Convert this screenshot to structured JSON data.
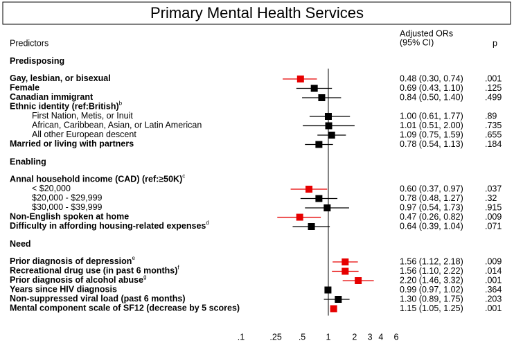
{
  "chart_data": {
    "type": "forest",
    "title": "Primary Mental Health Services",
    "header": {
      "predictors": "Predictors",
      "estimate": [
        "Adjusted ORs",
        "(95% CI)"
      ],
      "p": "p"
    },
    "xscale": "log",
    "xlim": [
      0.1,
      6
    ],
    "xticks": [
      {
        "value": 0.1,
        "label": ".1"
      },
      {
        "value": 0.25,
        "label": ".25"
      },
      {
        "value": 0.5,
        "label": ".5"
      },
      1,
      2,
      3,
      4,
      6
    ],
    "reference": 1,
    "rows": [
      {
        "label": "Predisposing",
        "style": "heading"
      },
      {
        "label": "Gay, lesbian, or bisexual",
        "style": "bold",
        "estimate": 0.48,
        "lower": 0.3,
        "upper": 0.74,
        "ci_label": "0.48 (0.30, 0.74)",
        "p": ".001",
        "color": "#e60000"
      },
      {
        "label": "Female",
        "style": "bold",
        "estimate": 0.69,
        "lower": 0.43,
        "upper": 1.1,
        "ci_label": "0.69 (0.43, 1.10)",
        "p": ".125",
        "color": "#000000"
      },
      {
        "label": "Canadian immigrant",
        "style": "bold",
        "estimate": 0.84,
        "lower": 0.5,
        "upper": 1.4,
        "ci_label": "0.84 (0.50, 1.40)",
        "p": ".499",
        "color": "#000000"
      },
      {
        "label": "Ethnic identity (ref:British)",
        "note": "b",
        "style": "bold"
      },
      {
        "label": "First Nation, Metis, or Inuit",
        "style": "indent",
        "estimate": 1.0,
        "lower": 0.61,
        "upper": 1.77,
        "ci_label": "1.00 (0.61, 1.77)",
        "p": ".89",
        "color": "#000000"
      },
      {
        "label": "African, Caribbean, Asian, or Latin American",
        "style": "indent",
        "estimate": 1.01,
        "lower": 0.51,
        "upper": 2.0,
        "ci_label": "1.01 (0.51, 2.00)",
        "p": ".735",
        "color": "#000000"
      },
      {
        "label": "All other European descent",
        "style": "indent",
        "estimate": 1.09,
        "lower": 0.75,
        "upper": 1.59,
        "ci_label": "1.09 (0.75, 1.59)",
        "p": ".655",
        "color": "#000000"
      },
      {
        "label": "Married or living with partners",
        "style": "bold",
        "estimate": 0.78,
        "lower": 0.54,
        "upper": 1.13,
        "ci_label": "0.78 (0.54, 1.13)",
        "p": ".184",
        "color": "#000000"
      },
      {
        "label": "Enabling",
        "style": "heading"
      },
      {
        "label": "Annal household income (CAD) (ref:≥50K)",
        "note": "c",
        "style": "bold"
      },
      {
        "label": "< $20,000",
        "style": "indent",
        "estimate": 0.6,
        "lower": 0.37,
        "upper": 0.97,
        "ci_label": "0.60 (0.37, 0.97)",
        "p": ".037",
        "color": "#e60000"
      },
      {
        "label": "$20,000 - $29,999",
        "style": "indent",
        "estimate": 0.78,
        "lower": 0.48,
        "upper": 1.27,
        "ci_label": "0.78 (0.48, 1.27)",
        "p": ".32",
        "color": "#000000"
      },
      {
        "label": "$30,000 - $39,999",
        "style": "indent",
        "estimate": 0.97,
        "lower": 0.54,
        "upper": 1.73,
        "ci_label": "0.97 (0.54, 1.73)",
        "p": ".915",
        "color": "#000000"
      },
      {
        "label": "Non-English spoken at home",
        "style": "bold",
        "estimate": 0.47,
        "lower": 0.26,
        "upper": 0.82,
        "ci_label": "0.47 (0.26, 0.82)",
        "p": ".009",
        "color": "#e60000"
      },
      {
        "label": "Difficulty in affording housing-related expenses",
        "note": "d",
        "style": "bold",
        "estimate": 0.64,
        "lower": 0.39,
        "upper": 1.04,
        "ci_label": "0.64 (0.39, 1.04)",
        "p": ".071",
        "color": "#000000"
      },
      {
        "label": "Need",
        "style": "heading"
      },
      {
        "label": "Prior diagnosis of depression",
        "note": "e",
        "style": "bold",
        "estimate": 1.56,
        "lower": 1.12,
        "upper": 2.18,
        "ci_label": "1.56 (1.12, 2.18)",
        "p": ".009",
        "color": "#e60000"
      },
      {
        "label": "Recreational drug use (in past 6 months)",
        "note": "f",
        "style": "bold",
        "estimate": 1.56,
        "lower": 1.1,
        "upper": 2.22,
        "ci_label": "1.56 (1.10, 2.22)",
        "p": ".014",
        "color": "#e60000"
      },
      {
        "label": "Prior diagnosis of alcohol abuse",
        "note": "g",
        "style": "bold",
        "estimate": 2.2,
        "lower": 1.46,
        "upper": 3.32,
        "ci_label": "2.20 (1.46, 3.32)",
        "p": ".001",
        "color": "#e60000"
      },
      {
        "label": "Years since HIV diagnosis",
        "style": "bold",
        "estimate": 0.99,
        "lower": 0.97,
        "upper": 1.02,
        "ci_label": "0.99 (0.97, 1.02)",
        "p": ".364",
        "color": "#000000"
      },
      {
        "label": "Non-suppressed viral load (past 6 months)",
        "style": "bold",
        "estimate": 1.3,
        "lower": 0.89,
        "upper": 1.75,
        "ci_label": "1.30 (0.89, 1.75)",
        "p": ".203",
        "color": "#000000"
      },
      {
        "label": "Mental component scale of SF12 (decrease by 5 scores)",
        "style": "bold",
        "estimate": 1.15,
        "lower": 1.05,
        "upper": 1.25,
        "ci_label": "1.15 (1.05, 1.25)",
        "p": ".001",
        "color": "#e60000"
      }
    ]
  }
}
